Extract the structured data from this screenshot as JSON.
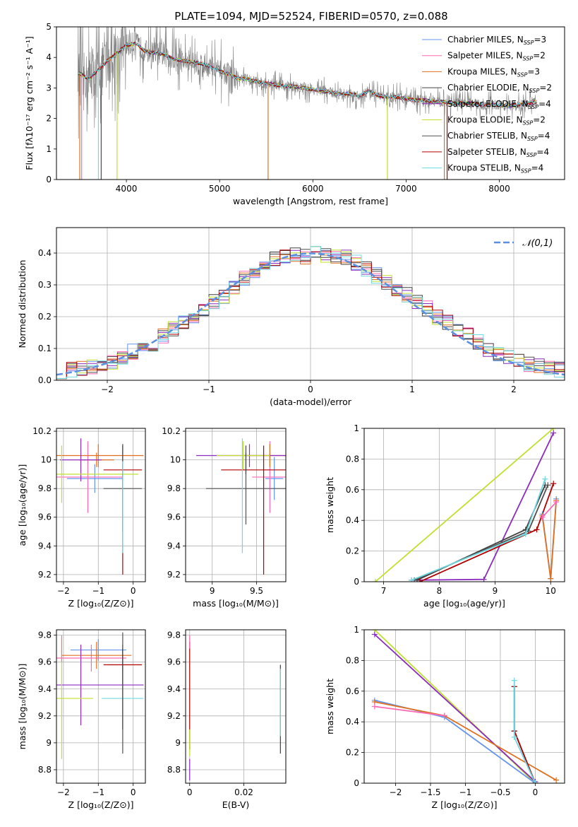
{
  "figure": {
    "title": "PLATE=1094, MJD=52524, FIBERID=0570, z=0.088"
  },
  "chart_data": [
    {
      "id": "spectrum",
      "type": "line",
      "xlabel": "wavelength [Angstrom, rest frame]",
      "ylabel": "Flux [fλ10⁻¹⁷ erg cm⁻² s⁻¹ A⁻¹]",
      "xlim": [
        3250,
        8700
      ],
      "ylim": [
        0,
        5
      ],
      "xticks": [
        4000,
        5000,
        6000,
        7000,
        8000
      ],
      "yticks": [
        0,
        1,
        2,
        3,
        4,
        5
      ],
      "grid": false,
      "legend_placement": "upper right",
      "data_color": "#808080",
      "continuum": [
        [
          3480,
          3.5
        ],
        [
          3600,
          3.3
        ],
        [
          3700,
          3.6
        ],
        [
          3800,
          3.9
        ],
        [
          3900,
          4.15
        ],
        [
          4000,
          4.4
        ],
        [
          4100,
          4.45
        ],
        [
          4200,
          4.2
        ],
        [
          4300,
          4.15
        ],
        [
          4400,
          4.1
        ],
        [
          4500,
          3.95
        ],
        [
          4600,
          3.9
        ],
        [
          4700,
          3.85
        ],
        [
          4800,
          3.8
        ],
        [
          4900,
          3.7
        ],
        [
          5000,
          3.55
        ],
        [
          5100,
          3.45
        ],
        [
          5200,
          3.3
        ],
        [
          5300,
          3.3
        ],
        [
          5400,
          3.2
        ],
        [
          5500,
          3.15
        ],
        [
          5600,
          3.1
        ],
        [
          5700,
          3.05
        ],
        [
          5800,
          3.05
        ],
        [
          5900,
          3.0
        ],
        [
          6000,
          2.95
        ],
        [
          6100,
          2.9
        ],
        [
          6200,
          2.85
        ],
        [
          6300,
          2.8
        ],
        [
          6400,
          2.8
        ],
        [
          6500,
          2.75
        ],
        [
          6600,
          2.9
        ],
        [
          6700,
          2.75
        ],
        [
          6800,
          2.7
        ],
        [
          6900,
          2.7
        ],
        [
          7000,
          2.65
        ],
        [
          7100,
          2.6
        ],
        [
          7200,
          2.6
        ],
        [
          7300,
          2.55
        ],
        [
          7400,
          2.55
        ],
        [
          7500,
          2.5
        ],
        [
          7600,
          2.5
        ],
        [
          7700,
          2.5
        ],
        [
          7800,
          2.45
        ],
        [
          7900,
          2.45
        ],
        [
          8000,
          2.45
        ],
        [
          8100,
          2.4
        ],
        [
          8200,
          2.45
        ],
        [
          8300,
          2.5
        ],
        [
          8400,
          2.55
        ]
      ],
      "series": [
        {
          "name": "Chabrier MILES, N_SSP=3",
          "color": "#6495ed"
        },
        {
          "name": "Salpeter MILES, N_SSP=2",
          "color": "#ff69b4"
        },
        {
          "name": "Kroupa MILES, N_SSP=3",
          "color": "#e07020"
        },
        {
          "name": "Chabrier ELODIE, N_SSP=2",
          "color": "#404040"
        },
        {
          "name": "Salpeter ELODIE, N_SSP=4",
          "color": "#8b2bbf"
        },
        {
          "name": "Kroupa ELODIE, N_SSP=2",
          "color": "#c0e030"
        },
        {
          "name": "Chabrier STELIB, N_SSP=4",
          "color": "#505050"
        },
        {
          "name": "Salpeter STELIB, N_SSP=4",
          "color": "#b00000"
        },
        {
          "name": "Kroupa STELIB, N_SSP=4",
          "color": "#70d8e0"
        }
      ],
      "legend": [
        {
          "prefix": "Chabrier MILES, N",
          "sub": "SSP",
          "suffix": "=3"
        },
        {
          "prefix": "Salpeter MILES, N",
          "sub": "SSP",
          "suffix": "=2"
        },
        {
          "prefix": "Kroupa MILES, N",
          "sub": "SSP",
          "suffix": "=3"
        },
        {
          "prefix": "Chabrier ELODIE, N",
          "sub": "SSP",
          "suffix": "=2"
        },
        {
          "prefix": "Salpeter ELODIE, N",
          "sub": "SSP",
          "suffix": "=4"
        },
        {
          "prefix": "Kroupa ELODIE, N",
          "sub": "SSP",
          "suffix": "=2"
        },
        {
          "prefix": "Chabrier STELIB, N",
          "sub": "SSP",
          "suffix": "=4"
        },
        {
          "prefix": "Salpeter STELIB, N",
          "sub": "SSP",
          "suffix": "=4"
        },
        {
          "prefix": "Kroupa STELIB, N",
          "sub": "SSP",
          "suffix": "=4"
        }
      ]
    },
    {
      "id": "residuals",
      "type": "line",
      "xlabel": "(data-model)/error",
      "ylabel": "Normed distribution",
      "xlim": [
        -2.5,
        2.5
      ],
      "ylim": [
        0,
        0.48
      ],
      "xticks": [
        -2,
        -1,
        0,
        1,
        2
      ],
      "yticks": [
        0.0,
        0.1,
        0.2,
        0.3,
        0.4
      ],
      "grid": true,
      "legend_placement": "upper right",
      "legend": "𝒩(0,1)",
      "gaussian_color": "#5b8fe0",
      "bins": [
        -2.5,
        -2.4,
        -2.3,
        -2.2,
        -2.1,
        -2.0,
        -1.9,
        -1.8,
        -1.7,
        -1.6,
        -1.5,
        -1.4,
        -1.3,
        -1.2,
        -1.1,
        -1.0,
        -0.9,
        -0.8,
        -0.7,
        -0.6,
        -0.5,
        -0.4,
        -0.3,
        -0.2,
        -0.1,
        0.0,
        0.1,
        0.2,
        0.3,
        0.4,
        0.5,
        0.6,
        0.7,
        0.8,
        0.9,
        1.0,
        1.1,
        1.2,
        1.3,
        1.4,
        1.5,
        1.6,
        1.7,
        1.8,
        1.9,
        2.0,
        2.1,
        2.2,
        2.3,
        2.4,
        2.5
      ],
      "base": [
        0.03,
        0.035,
        0.04,
        0.045,
        0.055,
        0.06,
        0.075,
        0.09,
        0.1,
        0.115,
        0.14,
        0.16,
        0.18,
        0.2,
        0.225,
        0.245,
        0.265,
        0.29,
        0.32,
        0.34,
        0.36,
        0.38,
        0.39,
        0.395,
        0.39,
        0.4,
        0.395,
        0.39,
        0.385,
        0.37,
        0.35,
        0.33,
        0.31,
        0.29,
        0.27,
        0.245,
        0.225,
        0.2,
        0.18,
        0.16,
        0.14,
        0.12,
        0.1,
        0.085,
        0.07,
        0.06,
        0.05,
        0.045,
        0.04,
        0.035
      ]
    },
    {
      "id": "age-vs-Z",
      "type": "scatter",
      "xlabel": "Z [log₁₀(Z/Z⊙)]",
      "ylabel": "age  [log₁₀(age/yr)]",
      "xlim": [
        -2.2,
        0.35
      ],
      "ylim": [
        9.15,
        10.22
      ],
      "xticks": [
        -2,
        -1,
        0
      ],
      "yticks": [
        9.2,
        9.4,
        9.6,
        9.8,
        10.0,
        10.2
      ],
      "grid": true,
      "points": [
        {
          "c": 0,
          "x": -1.1,
          "y": 9.87,
          "xe": 0.8,
          "ye": 0.1
        },
        {
          "c": 1,
          "x": -1.3,
          "y": 9.88,
          "xe": 1.0,
          "ye": 0.25
        },
        {
          "c": 2,
          "x": -1.0,
          "y": 10.03,
          "xe": 1.3,
          "ye": 0.08
        },
        {
          "c": 2,
          "x": -1.05,
          "y": 10.0,
          "xe": 0.5,
          "ye": 0.05
        },
        {
          "c": 4,
          "x": -1.5,
          "y": 10.0,
          "xe": 0.6,
          "ye": 0.15
        },
        {
          "c": 5,
          "x": -2.05,
          "y": 9.9,
          "xe": 2.2,
          "ye": 0.2
        },
        {
          "c": 7,
          "x": -0.3,
          "y": 9.93,
          "xe": 0.55,
          "ye": 0.05
        },
        {
          "c": 7,
          "x": -0.3,
          "y": 9.55,
          "xe": 0.0,
          "ye": 0.35
        },
        {
          "c": 6,
          "x": -0.3,
          "y": 9.8,
          "xe": 0.55,
          "ye": 0.3
        },
        {
          "c": 8,
          "x": -0.3,
          "y": 9.7,
          "xe": 0.0,
          "ye": 0.35
        },
        {
          "c": 3,
          "x": -0.3,
          "y": 10.05,
          "xe": 0.0,
          "ye": 0.06
        }
      ]
    },
    {
      "id": "age-vs-mass",
      "type": "scatter",
      "xlabel": "mass [log₁₀(M/M⊙)]",
      "ylabel": "",
      "xlim": [
        8.7,
        9.83
      ],
      "ylim": [
        9.15,
        10.22
      ],
      "xticks": [
        9.0,
        9.5
      ],
      "yticks": [
        9.2,
        9.4,
        9.6,
        9.8,
        10.0,
        10.2
      ],
      "grid": true,
      "points": [
        {
          "c": 0,
          "x": 9.7,
          "y": 9.87,
          "xe": 0.1,
          "ye": 0.15
        },
        {
          "c": 1,
          "x": 9.65,
          "y": 9.88,
          "xe": 0.2,
          "ye": 0.25
        },
        {
          "c": 2,
          "x": 9.65,
          "y": 10.03,
          "xe": 0.3,
          "ye": 0.08
        },
        {
          "c": 4,
          "x": 9.42,
          "y": 10.03,
          "xe": 0.6,
          "ye": 0.08
        },
        {
          "c": 5,
          "x": 9.35,
          "y": 10.03,
          "xe": 0.3,
          "ye": 0.1
        },
        {
          "c": 7,
          "x": 9.58,
          "y": 9.65,
          "xe": 0.0,
          "ye": 0.45
        },
        {
          "c": 7,
          "x": 9.5,
          "y": 9.93,
          "xe": 0.4,
          "ye": 0.0
        },
        {
          "c": 6,
          "x": 9.38,
          "y": 9.8,
          "xe": 0.45,
          "ye": 0.25
        },
        {
          "c": 8,
          "x": 9.34,
          "y": 9.75,
          "xe": 0.0,
          "ye": 0.4
        },
        {
          "c": 3,
          "x": 9.38,
          "y": 10.0,
          "xe": 0.0,
          "ye": 0.1
        }
      ]
    },
    {
      "id": "weight-vs-age",
      "type": "line",
      "xlabel": "age  [log₁₀(age/yr)]",
      "ylabel": "mass weight",
      "xlim": [
        6.65,
        10.25
      ],
      "ylim": [
        0,
        1
      ],
      "xticks": [
        7,
        8,
        9,
        10
      ],
      "yticks": [
        0.0,
        0.2,
        0.4,
        0.6,
        0.8,
        1.0
      ],
      "grid": true,
      "lines": [
        {
          "c": 5,
          "pts": [
            [
              6.85,
              0.0
            ],
            [
              10.05,
              1.0
            ]
          ]
        },
        {
          "c": 4,
          "pts": [
            [
              7.5,
              0.01
            ],
            [
              8.8,
              0.015
            ],
            [
              10.05,
              0.97
            ]
          ]
        },
        {
          "c": 3,
          "pts": [
            [
              7.6,
              0.01
            ],
            [
              9.55,
              0.34
            ],
            [
              9.9,
              0.63
            ]
          ]
        },
        {
          "c": 6,
          "pts": [
            [
              7.55,
              0.01
            ],
            [
              9.6,
              0.33
            ],
            [
              9.95,
              0.63
            ]
          ]
        },
        {
          "c": 7,
          "pts": [
            [
              7.65,
              0.0
            ],
            [
              9.75,
              0.34
            ],
            [
              10.05,
              0.64
            ]
          ]
        },
        {
          "c": 8,
          "pts": [
            [
              7.5,
              0.01
            ],
            [
              9.55,
              0.31
            ],
            [
              9.9,
              0.67
            ]
          ]
        },
        {
          "c": 0,
          "pts": [
            [
              9.85,
              0.44
            ],
            [
              10.0,
              0.02
            ],
            [
              10.1,
              0.54
            ]
          ]
        },
        {
          "c": 2,
          "pts": [
            [
              9.85,
              0.43
            ],
            [
              10.0,
              0.02
            ],
            [
              10.1,
              0.53
            ]
          ]
        },
        {
          "c": 1,
          "pts": [
            [
              9.85,
              0.42
            ],
            [
              10.1,
              0.52
            ]
          ]
        }
      ]
    },
    {
      "id": "mass-vs-Z",
      "type": "scatter",
      "xlabel": "Z [log₁₀(Z/Z⊙)]",
      "ylabel": "mass [log₁₀(M/M⊙)]",
      "xlim": [
        -2.2,
        0.35
      ],
      "ylim": [
        8.7,
        9.84
      ],
      "xticks": [
        -2,
        -1,
        0
      ],
      "yticks": [
        8.8,
        9.0,
        9.2,
        9.4,
        9.6,
        9.8
      ],
      "grid": true,
      "points": [
        {
          "c": 0,
          "x": -1.0,
          "y": 9.69,
          "xe": 0.8,
          "ye": 0.08
        },
        {
          "c": 1,
          "x": -1.2,
          "y": 9.63,
          "xe": 1.0,
          "ye": 0.1
        },
        {
          "c": 2,
          "x": -1.05,
          "y": 9.65,
          "xe": 1.0,
          "ye": 0.1
        },
        {
          "c": 4,
          "x": -1.5,
          "y": 9.43,
          "xe": 1.8,
          "ye": 0.3
        },
        {
          "c": 5,
          "x": -2.05,
          "y": 9.33,
          "xe": 0.9,
          "ye": 0.45
        },
        {
          "c": 7,
          "x": -0.3,
          "y": 9.58,
          "xe": 0.55,
          "ye": 0.15
        },
        {
          "c": 6,
          "x": -0.3,
          "y": 9.37,
          "xe": 0.0,
          "ye": 0.45
        },
        {
          "c": 8,
          "x": -0.3,
          "y": 9.33,
          "xe": 0.6,
          "ye": 0.2
        },
        {
          "c": 3,
          "x": -0.3,
          "y": 9.4,
          "xe": 0.0,
          "ye": 0.3
        },
        {
          "c": 1,
          "x": -2.05,
          "y": 9.7,
          "xe": 0.0,
          "ye": 0.1
        }
      ]
    },
    {
      "id": "mass-vs-ebv",
      "type": "scatter",
      "xlabel": "E(B-V)",
      "ylabel": "",
      "xlim": [
        -0.0015,
        0.0355
      ],
      "ylim": [
        8.7,
        9.84
      ],
      "xticks": [
        0.0,
        0.02
      ],
      "yticks": [
        8.8,
        9.0,
        9.2,
        9.4,
        9.6,
        9.8
      ],
      "grid": true,
      "points": [
        {
          "c": 7,
          "x": 0.0,
          "y": 9.35,
          "xe": 0,
          "ye": 0.4
        },
        {
          "c": 4,
          "x": 0.0,
          "y": 8.8,
          "xe": 0,
          "ye": 0.08
        },
        {
          "c": 1,
          "x": 0.0,
          "y": 9.75,
          "xe": 0,
          "ye": 0.05
        },
        {
          "c": 5,
          "x": 0.0,
          "y": 9.0,
          "xe": 0,
          "ye": 0.1
        },
        {
          "c": 3,
          "x": 0.0335,
          "y": 9.25,
          "xe": 0,
          "ye": 0.33
        },
        {
          "c": 8,
          "x": 0.0335,
          "y": 9.3,
          "xe": 0,
          "ye": 0.25
        }
      ]
    },
    {
      "id": "weight-vs-Z",
      "type": "line",
      "xlabel": "Z [log₁₀(Z/Z⊙)]",
      "ylabel": "mass weight",
      "xlim": [
        -2.45,
        0.42
      ],
      "ylim": [
        0,
        1
      ],
      "xticks": [
        -2.0,
        -1.5,
        -1.0,
        -0.5,
        0.0
      ],
      "yticks": [
        0.0,
        0.2,
        0.4,
        0.6,
        0.8,
        1.0
      ],
      "grid": true,
      "lines": [
        {
          "c": 5,
          "pts": [
            [
              -2.3,
              1.0
            ],
            [
              0.0,
              0.0
            ]
          ]
        },
        {
          "c": 4,
          "pts": [
            [
              -2.3,
              0.97
            ],
            [
              0.0,
              0.01
            ]
          ]
        },
        {
          "c": 0,
          "pts": [
            [
              -2.3,
              0.54
            ],
            [
              -1.3,
              0.43
            ],
            [
              0.0,
              0.0
            ]
          ]
        },
        {
          "c": 2,
          "pts": [
            [
              -2.3,
              0.53
            ],
            [
              -1.3,
              0.44
            ],
            [
              0.3,
              0.02
            ]
          ]
        },
        {
          "c": 1,
          "pts": [
            [
              -2.3,
              0.5
            ],
            [
              -1.3,
              0.44
            ]
          ]
        },
        {
          "c": 3,
          "pts": [
            [
              -0.3,
              0.63
            ],
            [
              -0.3,
              0.34
            ],
            [
              0.0,
              0.0
            ]
          ]
        },
        {
          "c": 7,
          "pts": [
            [
              -0.3,
              0.63
            ],
            [
              -0.3,
              0.34
            ],
            [
              0.0,
              0.0
            ]
          ]
        },
        {
          "c": 8,
          "pts": [
            [
              -0.3,
              0.67
            ],
            [
              -0.3,
              0.3
            ],
            [
              0.0,
              0.0
            ]
          ]
        }
      ]
    }
  ]
}
